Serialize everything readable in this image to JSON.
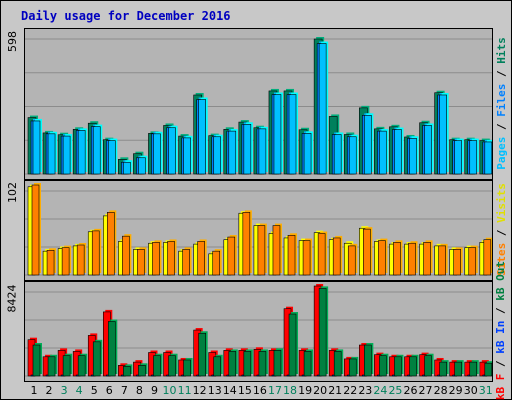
{
  "title": "Daily usage for December 2016",
  "colors": {
    "hits": "#00c0ff",
    "files": "#0080ff",
    "pages": "#00c0ff",
    "hits_back": "#00805c",
    "visits": "#ffff00",
    "sites": "#ff8000",
    "kb_in": "#0040ff",
    "kb_out": "#008040",
    "kb_f": "#ff0000",
    "weekend_label": "#00805c",
    "title": "#0000c0"
  },
  "legends": {
    "top": {
      "pages": "Pages",
      "files": "Files",
      "hits": "Hits",
      "sep": "/"
    },
    "middle": {
      "sites": "Sites",
      "visits": "Visits",
      "sep": "/"
    },
    "bottom": {
      "kbf": "kB F",
      "kbin": "kB In",
      "kbout": "kB Out",
      "sep": "/"
    }
  },
  "chart_data": [
    {
      "type": "bar",
      "title": "Daily usage for December 2016",
      "panel": "hits-files-pages",
      "ymax_label": "598",
      "ylim": [
        0,
        598
      ],
      "grid": true,
      "categories": [
        "1",
        "2",
        "3",
        "4",
        "5",
        "6",
        "7",
        "8",
        "9",
        "10",
        "11",
        "12",
        "13",
        "14",
        "15",
        "16",
        "17",
        "18",
        "19",
        "20",
        "21",
        "22",
        "23",
        "24",
        "25",
        "26",
        "27",
        "28",
        "29",
        "30",
        "31"
      ],
      "weekend_days": [
        "3",
        "4",
        "10",
        "11",
        "17",
        "18",
        "24",
        "25",
        "31"
      ],
      "series": [
        {
          "name": "Hits",
          "values": [
            250,
            182,
            174,
            198,
            225,
            152,
            65,
            90,
            180,
            215,
            168,
            350,
            170,
            198,
            230,
            205,
            368,
            368,
            196,
            598,
            255,
            175,
            293,
            200,
            209,
            164,
            227,
            360,
            152,
            152,
            148
          ]
        },
        {
          "name": "Files",
          "values": [
            235,
            178,
            168,
            193,
            210,
            148,
            52,
            72,
            178,
            205,
            160,
            330,
            165,
            190,
            220,
            200,
            352,
            352,
            180,
            578,
            175,
            165,
            260,
            190,
            197,
            158,
            215,
            350,
            148,
            148,
            142
          ]
        },
        {
          "name": "Pages",
          "values": [
            235,
            178,
            168,
            193,
            210,
            148,
            52,
            72,
            178,
            205,
            160,
            330,
            165,
            190,
            220,
            200,
            352,
            352,
            180,
            578,
            175,
            165,
            260,
            190,
            197,
            158,
            215,
            350,
            148,
            148,
            142
          ]
        }
      ]
    },
    {
      "type": "bar",
      "panel": "visits-sites",
      "ymax_label": "102",
      "ylim": [
        0,
        102
      ],
      "grid": true,
      "categories": [
        "1",
        "2",
        "3",
        "4",
        "5",
        "6",
        "7",
        "8",
        "9",
        "10",
        "11",
        "12",
        "13",
        "14",
        "15",
        "16",
        "17",
        "18",
        "19",
        "20",
        "21",
        "22",
        "23",
        "24",
        "25",
        "26",
        "27",
        "28",
        "29",
        "30",
        "31"
      ],
      "series": [
        {
          "name": "Visits",
          "values": [
            100,
            27,
            30,
            33,
            49,
            67,
            38,
            29,
            36,
            37,
            27,
            35,
            24,
            40,
            70,
            56,
            47,
            42,
            39,
            48,
            40,
            36,
            53,
            38,
            35,
            35,
            35,
            33,
            29,
            31,
            37
          ]
        },
        {
          "name": "Sites",
          "values": [
            102,
            28,
            31,
            34,
            50,
            71,
            44,
            29,
            37,
            38,
            29,
            38,
            27,
            43,
            71,
            56,
            56,
            45,
            39,
            47,
            42,
            33,
            52,
            39,
            37,
            36,
            37,
            33,
            29,
            31,
            40
          ]
        }
      ]
    },
    {
      "type": "bar",
      "panel": "kbytes",
      "ymax_label": "8424",
      "ylim": [
        0,
        8424
      ],
      "grid": true,
      "categories": [
        "1",
        "2",
        "3",
        "4",
        "5",
        "6",
        "7",
        "8",
        "9",
        "10",
        "11",
        "12",
        "13",
        "14",
        "15",
        "16",
        "17",
        "18",
        "19",
        "20",
        "21",
        "22",
        "23",
        "24",
        "25",
        "26",
        "27",
        "28",
        "29",
        "30",
        "31"
      ],
      "series": [
        {
          "name": "kB F",
          "values": [
            3400,
            1800,
            2400,
            2300,
            3800,
            6000,
            1000,
            1300,
            2200,
            2200,
            1500,
            4300,
            2200,
            2400,
            2400,
            2500,
            2400,
            6300,
            2400,
            8424,
            2400,
            1600,
            2900,
            2000,
            1800,
            1800,
            2000,
            1500,
            1300,
            1300,
            1300
          ]
        },
        {
          "name": "kB In",
          "values": [
            10,
            10,
            10,
            10,
            10,
            10,
            10,
            10,
            10,
            10,
            10,
            10,
            10,
            10,
            10,
            10,
            10,
            10,
            10,
            10,
            10,
            10,
            10,
            10,
            10,
            10,
            10,
            10,
            10,
            10,
            10
          ]
        },
        {
          "name": "kB Out",
          "values": [
            2900,
            1800,
            1900,
            1900,
            3200,
            5100,
            900,
            1000,
            1900,
            1900,
            1500,
            4000,
            1800,
            2300,
            2300,
            2300,
            2400,
            5800,
            2300,
            8200,
            2300,
            1600,
            2900,
            1900,
            1800,
            1800,
            1900,
            1300,
            1300,
            1300,
            1200
          ]
        }
      ]
    }
  ]
}
